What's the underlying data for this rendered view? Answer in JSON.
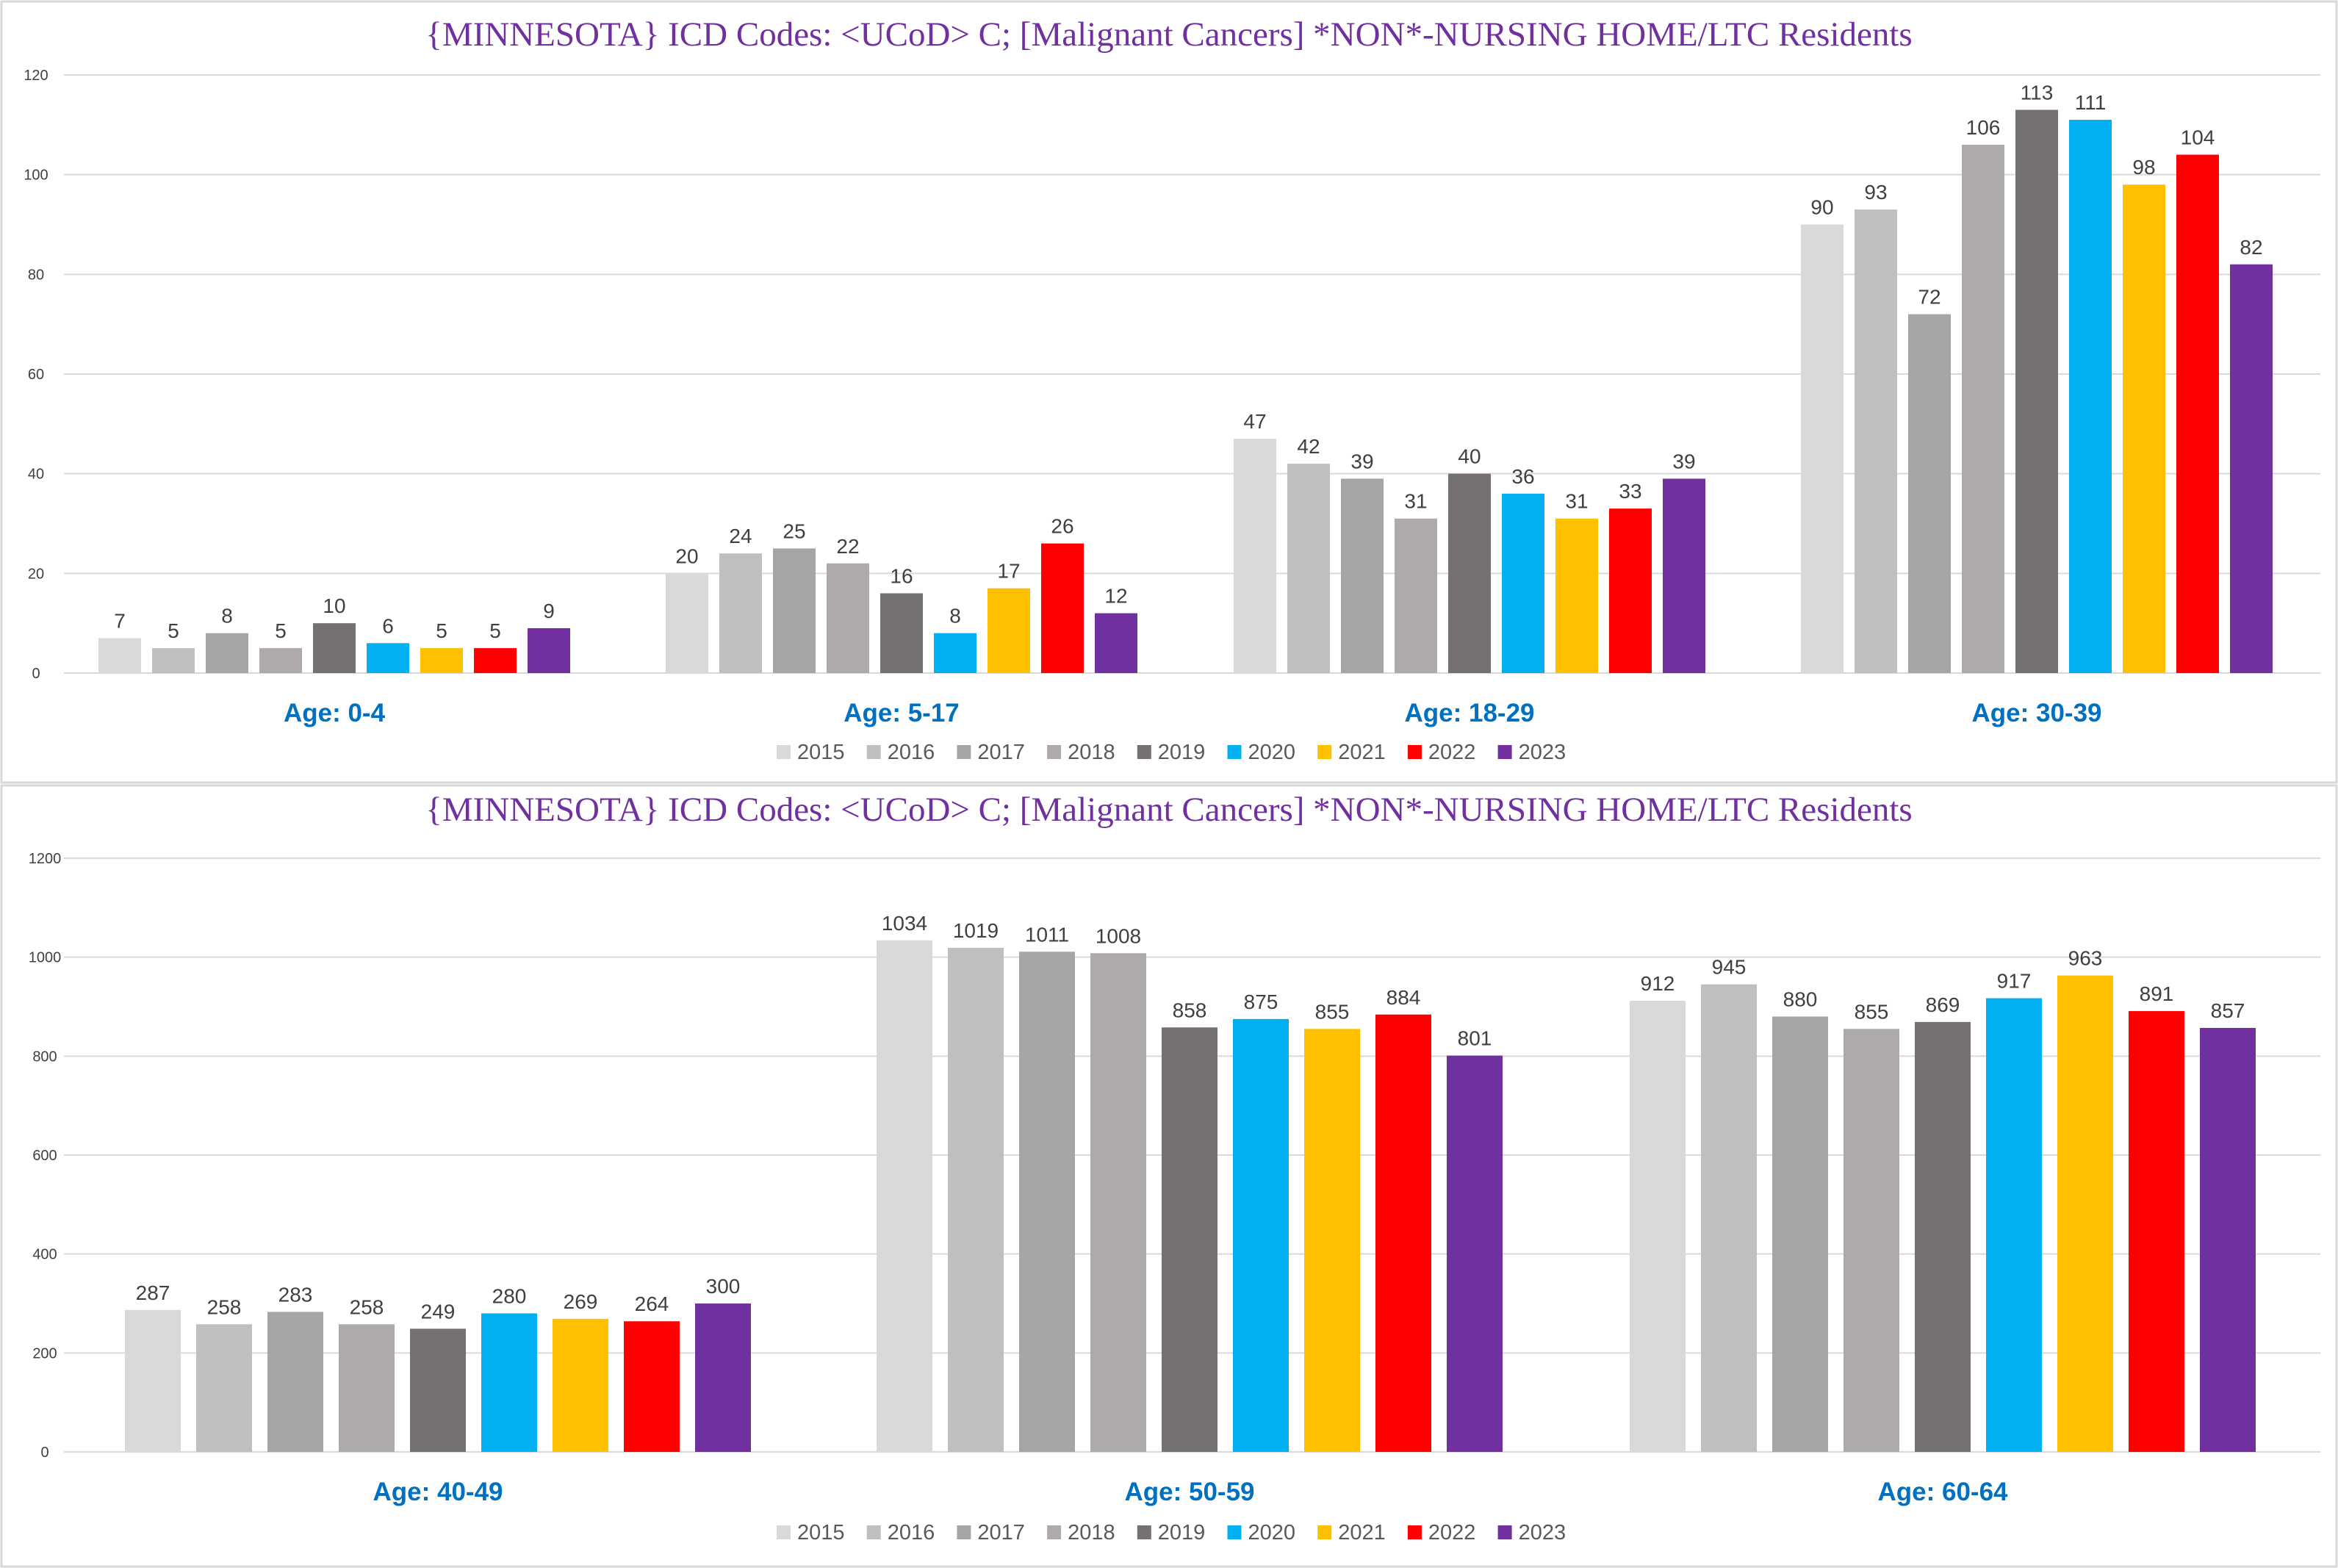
{
  "chart_data": [
    {
      "type": "bar",
      "title": "{MINNESOTA}  ICD Codes: <UCoD> C;  [Malignant Cancers] *NON*-NURSING HOME/LTC Residents",
      "categories": [
        "Age: 0-4",
        "Age: 5-17",
        "Age: 18-29",
        "Age: 30-39"
      ],
      "ylim": [
        0,
        120
      ],
      "yticks": [
        0,
        20,
        40,
        60,
        80,
        100,
        120
      ],
      "grid": true,
      "legend": "bottom",
      "series": [
        {
          "name": "2015",
          "color": "#d9d9d9",
          "values": [
            7,
            20,
            47,
            90
          ]
        },
        {
          "name": "2016",
          "color": "#bfbfbf",
          "values": [
            5,
            24,
            42,
            93
          ]
        },
        {
          "name": "2017",
          "color": "#a5a5a5",
          "values": [
            8,
            25,
            39,
            72
          ]
        },
        {
          "name": "2018",
          "color": "#aeaaaa",
          "values": [
            5,
            22,
            31,
            106
          ]
        },
        {
          "name": "2019",
          "color": "#767171",
          "values": [
            10,
            16,
            40,
            113
          ]
        },
        {
          "name": "2020",
          "color": "#00b0f0",
          "values": [
            6,
            8,
            36,
            111
          ]
        },
        {
          "name": "2021",
          "color": "#ffc000",
          "values": [
            5,
            17,
            31,
            98
          ]
        },
        {
          "name": "2022",
          "color": "#ff0000",
          "values": [
            5,
            26,
            33,
            104
          ]
        },
        {
          "name": "2023",
          "color": "#7030a0",
          "values": [
            9,
            12,
            39,
            82
          ]
        }
      ]
    },
    {
      "type": "bar",
      "title": "{MINNESOTA}  ICD Codes: <UCoD> C;  [Malignant Cancers] *NON*-NURSING HOME/LTC Residents",
      "categories": [
        "Age: 40-49",
        "Age: 50-59",
        "Age: 60-64"
      ],
      "ylim": [
        0,
        1200
      ],
      "yticks": [
        0,
        200,
        400,
        600,
        800,
        1000,
        1200
      ],
      "grid": true,
      "legend": "bottom",
      "series": [
        {
          "name": "2015",
          "color": "#d9d9d9",
          "values": [
            287,
            1034,
            912
          ]
        },
        {
          "name": "2016",
          "color": "#bfbfbf",
          "values": [
            258,
            1019,
            945
          ]
        },
        {
          "name": "2017",
          "color": "#a5a5a5",
          "values": [
            283,
            1011,
            880
          ]
        },
        {
          "name": "2018",
          "color": "#aeaaaa",
          "values": [
            258,
            1008,
            855
          ]
        },
        {
          "name": "2019",
          "color": "#767171",
          "values": [
            249,
            858,
            869
          ]
        },
        {
          "name": "2020",
          "color": "#00b0f0",
          "values": [
            280,
            875,
            917
          ]
        },
        {
          "name": "2021",
          "color": "#ffc000",
          "values": [
            269,
            855,
            963
          ]
        },
        {
          "name": "2022",
          "color": "#ff0000",
          "values": [
            264,
            884,
            891
          ]
        },
        {
          "name": "2023",
          "color": "#7030a0",
          "values": [
            300,
            801,
            857
          ]
        }
      ]
    }
  ]
}
